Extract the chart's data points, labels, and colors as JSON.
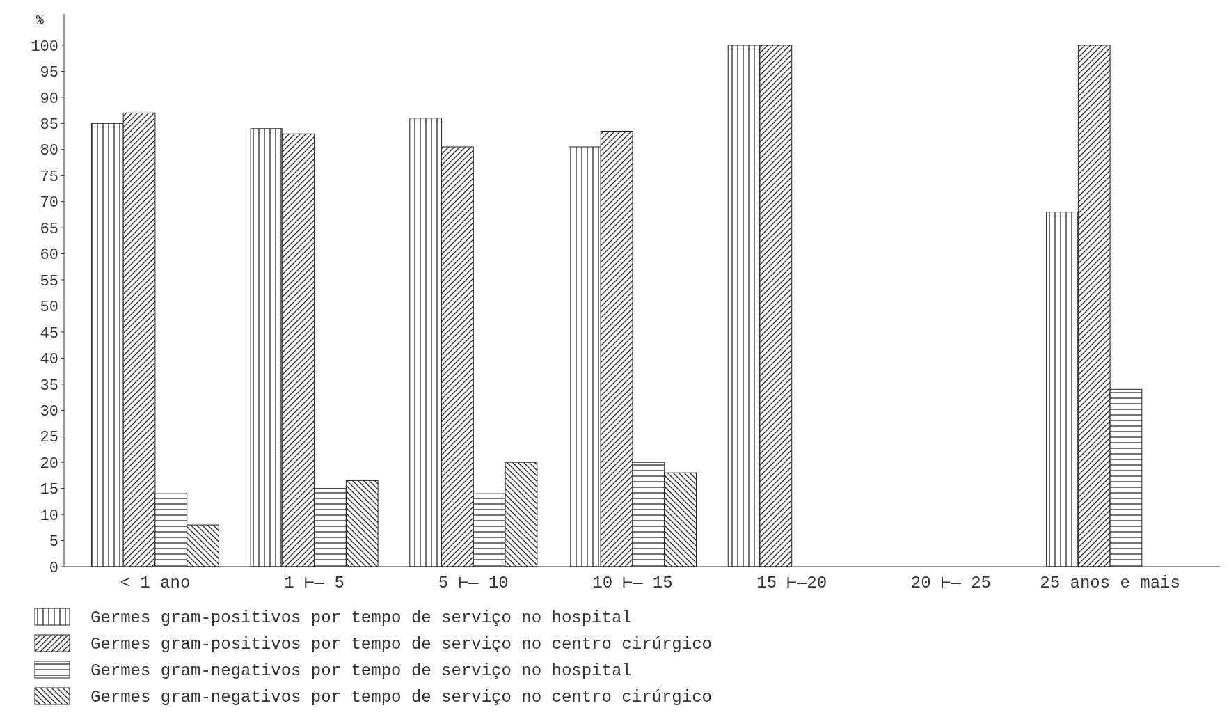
{
  "chart_data": {
    "type": "bar",
    "ylabel": "%",
    "categories": [
      "< 1 ano",
      "1 ⊢— 5",
      "5 ⊢— 10",
      "10 ⊢— 15",
      "15 ⊢—20",
      "20 ⊢— 25",
      "25 anos e mais"
    ],
    "series": [
      {
        "name": "Germes gram-positivos por tempo de serviço no hospital",
        "color": "#222222",
        "values": [
          85,
          84,
          86,
          80.5,
          100,
          0,
          68
        ]
      },
      {
        "name": "Germes gram-positivos por tempo de serviço no centro cirúrgico",
        "color": "#222222",
        "values": [
          87,
          83,
          80.5,
          83.5,
          100,
          0,
          100
        ]
      },
      {
        "name": "Germes gram-negativos por tempo de serviço no hospital",
        "color": "#222222",
        "values": [
          14,
          15,
          14,
          20,
          0,
          0,
          34
        ]
      },
      {
        "name": "Germes gram-negativos por tempo de serviço no centro cirúrgico",
        "color": "#222222",
        "values": [
          8,
          16.5,
          20,
          18,
          0,
          0,
          0
        ]
      }
    ],
    "ylim": [
      0,
      106
    ],
    "yticks": [
      0,
      5,
      10,
      15,
      20,
      25,
      30,
      35,
      40,
      45,
      50,
      55,
      60,
      65,
      70,
      75,
      80,
      85,
      90,
      95,
      100
    ],
    "grid": false,
    "legend": "bottom"
  }
}
